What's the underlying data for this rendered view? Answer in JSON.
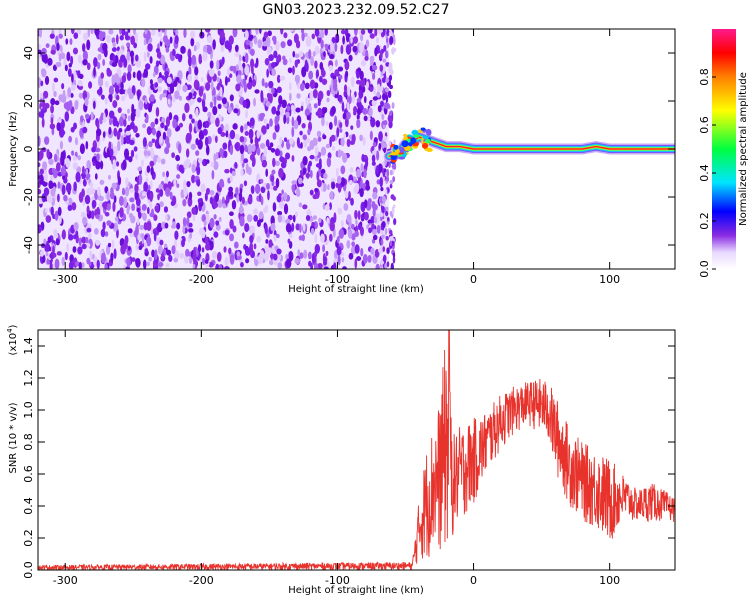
{
  "title": "GN03.2023.232.09.52.C27",
  "chart_data": [
    {
      "type": "heatmap",
      "name": "spectrogram",
      "xlabel": "Height of straight line (km)",
      "ylabel": "Frequency (Hz)",
      "xlim": [
        -320,
        148
      ],
      "ylim": [
        -50,
        50
      ],
      "x_ticks": [
        -300,
        -200,
        -100,
        0,
        100
      ],
      "y_ticks": [
        -40,
        -20,
        0,
        20,
        40
      ],
      "noise_region_x": [
        -320,
        -62
      ],
      "signal_track": {
        "x": [
          -62,
          -55,
          -50,
          -45,
          -40,
          -30,
          -20,
          -10,
          0,
          20,
          50,
          80,
          90,
          100,
          120,
          148
        ],
        "freq_hz": [
          -3,
          -2,
          2,
          3,
          5,
          3,
          1,
          1,
          0,
          0,
          0,
          0,
          1,
          0,
          0,
          0
        ]
      },
      "colorbar": {
        "label": "Normalized spectral amplitude",
        "ticks": [
          0.0,
          0.2,
          0.4,
          0.6,
          0.8
        ],
        "range": [
          0,
          1
        ]
      }
    },
    {
      "type": "line",
      "name": "snr",
      "xlabel": "Height of straight line (km)",
      "ylabel": "SNR (10 * v/v)",
      "scale_label": "(x10",
      "scale_exp": "4",
      "scale_close": ")",
      "xlim": [
        -320,
        148
      ],
      "ylim": [
        0,
        1.5
      ],
      "x_ticks": [
        -300,
        -200,
        -100,
        0,
        100
      ],
      "y_ticks": [
        0.0,
        0.2,
        0.4,
        0.6,
        0.8,
        1.0,
        1.2,
        1.4
      ],
      "color": "#e8322c",
      "envelope": {
        "x": [
          -320,
          -45,
          -40,
          -35,
          -30,
          -25,
          -20,
          -15,
          -10,
          0,
          10,
          20,
          30,
          40,
          50,
          55,
          60,
          70,
          80,
          90,
          100,
          110,
          120,
          130,
          140,
          148
        ],
        "upper": [
          0.03,
          0.05,
          0.45,
          0.75,
          0.9,
          1.05,
          1.5,
          0.85,
          0.9,
          0.95,
          1.0,
          1.1,
          1.15,
          1.18,
          1.2,
          1.18,
          1.1,
          0.9,
          0.8,
          0.75,
          0.7,
          0.6,
          0.5,
          0.55,
          0.5,
          0.45
        ],
        "lower": [
          0.0,
          0.0,
          0.05,
          0.05,
          0.1,
          0.1,
          0.1,
          0.2,
          0.3,
          0.4,
          0.6,
          0.75,
          0.85,
          0.9,
          0.85,
          0.8,
          0.6,
          0.4,
          0.3,
          0.25,
          0.15,
          0.3,
          0.3,
          0.3,
          0.3,
          0.3
        ]
      }
    }
  ]
}
